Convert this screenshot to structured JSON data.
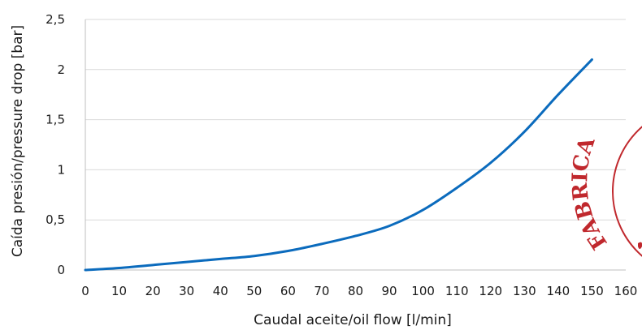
{
  "chart_data": {
    "type": "line",
    "title": "",
    "xlabel": "Caudal aceite/oil flow [l/min]",
    "ylabel": "Caída presión/pressure drop [bar]",
    "xlim": [
      0,
      160
    ],
    "ylim": [
      0,
      2.5
    ],
    "x_ticks": [
      0,
      10,
      20,
      30,
      40,
      50,
      60,
      70,
      80,
      90,
      100,
      110,
      120,
      130,
      140,
      150,
      160
    ],
    "x_tick_labels": [
      "0",
      "10",
      "20",
      "30",
      "40",
      "50",
      "60",
      "70",
      "80",
      "90",
      "100",
      "110",
      "120",
      "130",
      "140",
      "150",
      "160"
    ],
    "y_ticks": [
      0,
      0.5,
      1,
      1.5,
      2,
      2.5
    ],
    "y_tick_labels": [
      "0",
      "0,5",
      "1",
      "1,5",
      "2",
      "2,5"
    ],
    "grid": "horizontal",
    "legend": "none",
    "series": [
      {
        "color": "#0b6bbd",
        "x": [
          0,
          10,
          20,
          30,
          40,
          50,
          60,
          70,
          80,
          90,
          100,
          110,
          120,
          130,
          140,
          150
        ],
        "y": [
          0,
          0.02,
          0.05,
          0.08,
          0.11,
          0.14,
          0.19,
          0.26,
          0.34,
          0.44,
          0.6,
          0.82,
          1.07,
          1.38,
          1.75,
          2.1
        ]
      }
    ]
  },
  "watermark": {
    "text": "FABRICA",
    "color": "#c0282d"
  }
}
